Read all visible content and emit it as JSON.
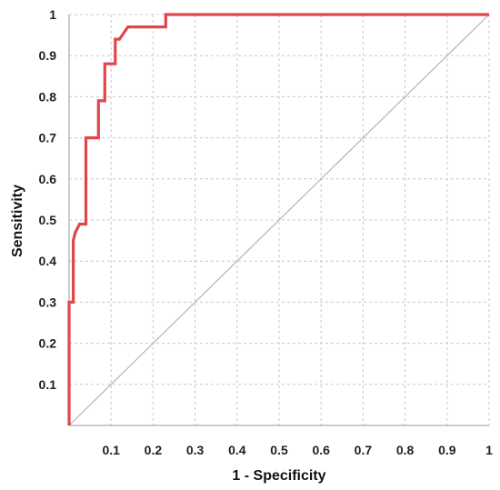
{
  "chart_data": {
    "type": "line",
    "title": "",
    "xlabel": "1 - Specificity",
    "ylabel": "Sensitivity",
    "xlim": [
      0,
      1
    ],
    "ylim": [
      0,
      1
    ],
    "grid": true,
    "x_ticks": [
      "0.1",
      "0.2",
      "0.3",
      "0.4",
      "0.5",
      "0.6",
      "0.7",
      "0.8",
      "0.9",
      "1"
    ],
    "y_ticks": [
      "0.1",
      "0.2",
      "0.3",
      "0.4",
      "0.5",
      "0.6",
      "0.7",
      "0.8",
      "0.9",
      "1"
    ],
    "series": [
      {
        "role": "roc-curve",
        "color": "#e0474c",
        "x": [
          0,
          0,
          0.01,
          0.01,
          0.015,
          0.025,
          0.04,
          0.04,
          0.07,
          0.07,
          0.085,
          0.085,
          0.11,
          0.11,
          0.12,
          0.14,
          0.23,
          0.23,
          1
        ],
        "y": [
          0,
          0.3,
          0.3,
          0.45,
          0.47,
          0.49,
          0.49,
          0.7,
          0.7,
          0.79,
          0.79,
          0.88,
          0.88,
          0.94,
          0.94,
          0.97,
          0.97,
          1.0,
          1.0
        ]
      },
      {
        "role": "reference-line",
        "color": "#b5b5b5",
        "x": [
          0,
          1
        ],
        "y": [
          0,
          1
        ]
      }
    ]
  }
}
